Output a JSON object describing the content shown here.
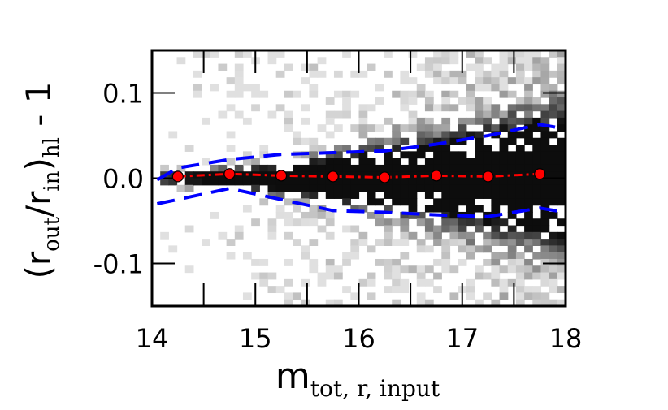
{
  "chart_data": {
    "type": "scatter",
    "title": "",
    "xlabel": {
      "main": "m",
      "subscript": "tot, r, input"
    },
    "ylabel": {
      "open": "(r",
      "sub_out": "out",
      "slash": "/r",
      "sub_in": "in",
      "close": ")",
      "sub_hl": "hl",
      "tail": " - 1"
    },
    "xlim": [
      14,
      18
    ],
    "ylim": [
      -0.15,
      0.15
    ],
    "x_ticks": [
      14,
      15,
      16,
      17,
      18
    ],
    "x_tick_labels": [
      "14",
      "15",
      "16",
      "17",
      "18"
    ],
    "y_ticks": [
      -0.1,
      0.0,
      0.1
    ],
    "y_tick_labels": [
      "-0.1",
      "0.0",
      "0.1"
    ],
    "grid": false,
    "background": {
      "type": "heatmap",
      "colormap": "grayscale",
      "description_of_density": "2D histogram of individual sources; spread widens toward fainter magnitudes"
    },
    "series": [
      {
        "style": "red dash-dot line with red circle markers and error bars",
        "color": "#ff0000",
        "x": [
          14.25,
          14.75,
          15.25,
          15.75,
          16.25,
          16.75,
          17.25,
          17.75
        ],
        "y": [
          0.002,
          0.005,
          0.003,
          0.002,
          0.001,
          0.003,
          0.002,
          0.005
        ],
        "yerr": [
          0.003,
          0.002,
          0.002,
          0.002,
          0.002,
          0.002,
          0.002,
          0.002
        ]
      },
      {
        "style": "blue dashed line (upper envelope)",
        "color": "#0000ff",
        "x": [
          14.05,
          14.25,
          14.75,
          15.25,
          15.75,
          16.25,
          16.75,
          17.25,
          17.75,
          18.0
        ],
        "y": [
          -0.002,
          0.012,
          0.022,
          0.028,
          0.03,
          0.032,
          0.04,
          0.05,
          0.063,
          0.058
        ]
      },
      {
        "style": "blue dashed line (lower envelope)",
        "color": "#0000ff",
        "x": [
          14.05,
          14.25,
          14.75,
          15.25,
          15.75,
          16.25,
          16.75,
          17.25,
          17.75,
          18.0
        ],
        "y": [
          -0.03,
          -0.025,
          -0.012,
          -0.025,
          -0.038,
          -0.04,
          -0.043,
          -0.045,
          -0.035,
          -0.04
        ]
      }
    ]
  }
}
